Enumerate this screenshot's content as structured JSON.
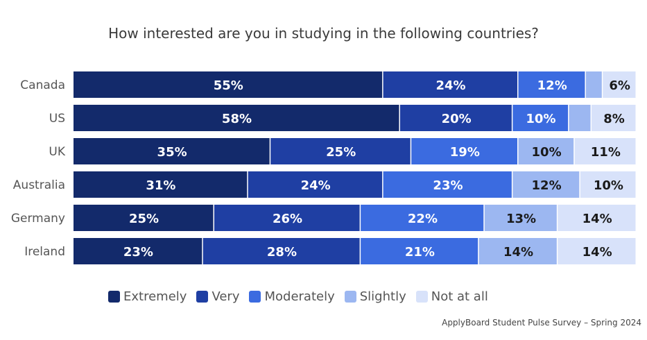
{
  "chart_data": {
    "type": "bar",
    "orientation": "horizontal",
    "stacked": true,
    "title": "How interested are you in studying in the following countries?",
    "categories": [
      "Canada",
      "US",
      "UK",
      "Australia",
      "Germany",
      "Ireland"
    ],
    "series": [
      {
        "name": "Extremely",
        "color": "#132a6b",
        "values": [
          55,
          58,
          35,
          31,
          25,
          23
        ],
        "labels": [
          "55%",
          "58%",
          "35%",
          "31%",
          "25%",
          "23%"
        ]
      },
      {
        "name": "Very",
        "color": "#1f3fa3",
        "values": [
          24,
          20,
          25,
          24,
          26,
          28
        ],
        "labels": [
          "24%",
          "20%",
          "25%",
          "24%",
          "26%",
          "28%"
        ]
      },
      {
        "name": "Moderately",
        "color": "#3b6be0",
        "values": [
          12,
          10,
          19,
          23,
          22,
          21
        ],
        "labels": [
          "12%",
          "10%",
          "19%",
          "23%",
          "22%",
          "21%"
        ]
      },
      {
        "name": "Slightly",
        "color": "#9cb7f1",
        "values": [
          3,
          4,
          10,
          12,
          13,
          14
        ],
        "labels": [
          "",
          "",
          "10%",
          "12%",
          "13%",
          "14%"
        ]
      },
      {
        "name": "Not at all",
        "color": "#d8e2fa",
        "values": [
          6,
          8,
          11,
          10,
          14,
          14
        ],
        "labels": [
          "6%",
          "8%",
          "11%",
          "10%",
          "14%",
          "14%"
        ]
      }
    ],
    "label_colors": {
      "dark": "#1a1a1a",
      "light": "#ffffff"
    },
    "legend_position": "bottom",
    "grid": false
  },
  "source": "ApplyBoard Student Pulse Survey – Spring 2024"
}
